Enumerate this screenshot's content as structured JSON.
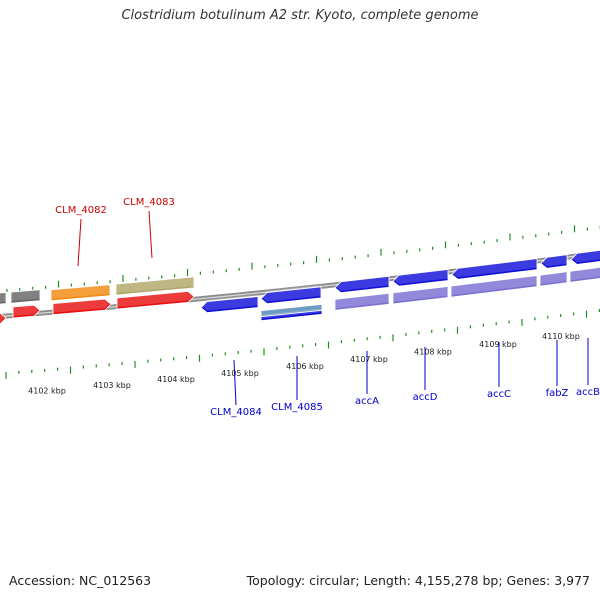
{
  "title": "Clostridium botulinum A2 str. Kyoto, complete genome",
  "footer": {
    "accession": "Accession: NC_012563",
    "summary": "Topology: circular; Length: 4,155,278 bp; Genes: 3,977"
  },
  "ruler": {
    "position_unit_labels": [
      "4102 kbp",
      "4103 kbp",
      "4104 kbp",
      "4105 kbp",
      "4106 kbp",
      "4107 kbp",
      "4108 kbp",
      "4109 kbp",
      "4110 kbp"
    ]
  },
  "gene_labels": {
    "top": [
      "CLM_4082",
      "CLM_4083"
    ],
    "bottom": [
      "CLM_4084",
      "CLM_4085",
      "accA",
      "accD",
      "accC",
      "fabZ",
      "accB"
    ]
  },
  "colors": {
    "ruler": "#228B22",
    "backbone": "#8c8c8c",
    "forward_gene": "#e81010",
    "reverse_gene": "#1010d8",
    "cds_forward": "#e8102e",
    "cds_reverse": "#7b6fd2",
    "orange_feature": "#f28a10",
    "khaki_feature": "#b0a86a",
    "gray_feature": "#666666",
    "steelblue_feature": "#4f86b4",
    "top_label": "#cc0000",
    "bottom_label": "#0000cc"
  }
}
